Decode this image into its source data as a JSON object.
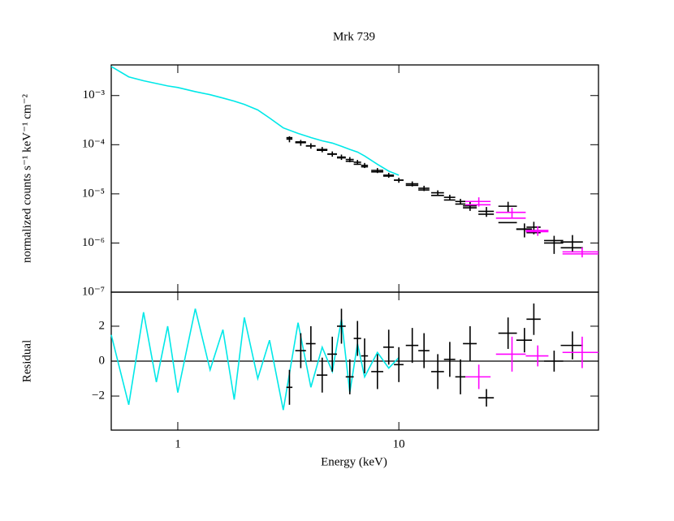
{
  "chart_data": [
    {
      "type": "spectrum",
      "title": "Mrk 739",
      "y_label": "normalized counts s⁻¹ keV⁻¹ cm⁻²",
      "log_x": true,
      "log_y": true,
      "xlim": [
        0.5,
        80
      ],
      "ylim": [
        1e-07,
        0.0042
      ],
      "yticks": [
        {
          "value": 1e-07,
          "label": "10⁻⁷"
        },
        {
          "value": 1e-06,
          "label": "10⁻⁶"
        },
        {
          "value": 1e-05,
          "label": "10⁻⁵"
        },
        {
          "value": 0.0001,
          "label": "10⁻⁴"
        },
        {
          "value": 0.001,
          "label": "10⁻³"
        }
      ],
      "series": [
        {
          "color": "#00e8e8",
          "style": "line",
          "x": [
            0.5,
            0.6,
            0.7,
            0.8,
            0.9,
            1.0,
            1.2,
            1.4,
            1.6,
            1.8,
            2.0,
            2.3,
            2.6,
            3.0,
            3.5,
            4.0,
            4.5,
            5.0,
            5.5,
            6.0,
            6.5,
            7.0,
            8.0,
            9.0,
            10
          ],
          "values": [
            0.0039,
            0.0024,
            0.002,
            0.00176,
            0.00157,
            0.00146,
            0.0012,
            0.00104,
            0.00089,
            0.00077,
            0.00066,
            0.00051,
            0.00035,
            0.00022,
            0.00017,
            0.00014,
            0.00012,
            0.000108,
            9.3e-05,
            8e-05,
            7.1e-05,
            5.9e-05,
            4e-05,
            2.9e-05,
            2.4e-05
          ]
        },
        {
          "color": "#000000",
          "style": "errorbar",
          "x": [
            3.2,
            3.6,
            4.0,
            4.5,
            5.0,
            5.5,
            6.0,
            6.5,
            7.0,
            8.0,
            9.0,
            10,
            11.5,
            13,
            15,
            17,
            19,
            21,
            24.9,
            31.2,
            37,
            40.8,
            50.4,
            61
          ],
          "xerr": [
            0.1,
            0.2,
            0.2,
            0.25,
            0.25,
            0.25,
            0.25,
            0.25,
            0.25,
            0.5,
            0.5,
            0.5,
            0.75,
            0.75,
            1,
            1,
            1,
            1.5,
            2,
            3,
            3,
            3,
            5,
            7
          ],
          "values": [
            0.00013,
            0.00011,
            9.5e-05,
            8e-05,
            6.5e-05,
            5.6e-05,
            5e-05,
            4.4e-05,
            3.8e-05,
            3e-05,
            2.4e-05,
            1.9e-05,
            1.6e-05,
            1.3e-05,
            1.05e-05,
            8.5e-06,
            7e-06,
            5.7e-06,
            4.4e-06,
            5.6e-06,
            1.9e-06,
            2.1e-06,
            1e-06,
            1.05e-06
          ],
          "yerr": [
            1.8e-05,
            1.5e-05,
            1.2e-05,
            1e-05,
            8e-06,
            7e-06,
            6e-06,
            5e-06,
            4.5e-06,
            3.5e-06,
            2.8e-06,
            2.2e-06,
            1.9e-06,
            1.6e-06,
            1.3e-06,
            1.1e-06,
            9e-07,
            1.2e-06,
            1e-06,
            1.3e-06,
            6e-07,
            6e-07,
            4e-07,
            4e-07
          ],
          "model": [
            0.000139,
            0.000114,
            9.4e-05,
            7.7e-05,
            6.4e-05,
            5.4e-05,
            4.6e-05,
            4e-05,
            3.55e-05,
            2.8e-05,
            2.3e-05,
            1.9e-05,
            1.49e-05,
            1.2e-05,
            9.3e-06,
            7.5e-06,
            6.2e-06,
            5.2e-06,
            3.85e-06,
            2.6e-06,
            1.93e-06,
            1.62e-06,
            1.12e-06,
            8e-07
          ]
        },
        {
          "color": "#ff00ff",
          "style": "errorbar",
          "x": [
            23,
            32.5,
            42.5,
            67.5
          ],
          "xerr": [
            3,
            5,
            5,
            12.5
          ],
          "values": [
            7e-06,
            4.2e-06,
            1.8e-06,
            6.6e-07
          ],
          "yerr": [
            1.5e-06,
            1e-06,
            4e-07,
            1.5e-07
          ],
          "model": [
            6e-06,
            3.2e-06,
            1.7e-06,
            6e-07
          ]
        }
      ]
    },
    {
      "type": "residual",
      "y_label": "Residual",
      "x_label": "Energy (keV)",
      "log_x": true,
      "xlim": [
        0.5,
        80
      ],
      "xticks": [
        1,
        10
      ],
      "ylim": [
        -3.95,
        3.95
      ],
      "yticks": [
        {
          "value": -2,
          "label": "−2"
        },
        0,
        2
      ],
      "reference_line": 0,
      "series": [
        {
          "color": "#00e8e8",
          "style": "line",
          "values": [
            1.5,
            -2.5,
            2.8,
            -1.2,
            2.0,
            -1.8,
            3.0,
            -0.5,
            1.8,
            -2.2,
            2.5,
            -1.0,
            1.2,
            -2.8,
            2.2,
            -1.5,
            0.8,
            -0.6,
            2.4,
            -1.8,
            1.0,
            -0.9,
            0.5,
            -0.4,
            0.2
          ]
        },
        {
          "color": "#000000",
          "style": "errorbar",
          "values": [
            -1.5,
            0.6,
            1.0,
            -0.8,
            0.4,
            2.0,
            -0.9,
            1.3,
            0.3,
            -0.6,
            0.8,
            -0.2,
            0.9,
            0.6,
            -0.6,
            0.1,
            -0.9,
            1.0,
            -2.1,
            1.6,
            1.2,
            2.4,
            0.0,
            0.9
          ],
          "yerr": [
            1,
            1,
            1,
            1,
            1,
            1,
            1,
            1,
            1,
            1,
            1,
            1,
            1,
            1,
            1,
            1,
            1,
            1,
            0.5,
            0.9,
            0.7,
            0.9,
            0.6,
            0.8
          ]
        },
        {
          "color": "#ff00ff",
          "style": "errorbar",
          "values": [
            -0.9,
            0.4,
            0.3,
            0.5
          ],
          "yerr": [
            0.7,
            1,
            0.6,
            0.9
          ]
        }
      ]
    }
  ]
}
